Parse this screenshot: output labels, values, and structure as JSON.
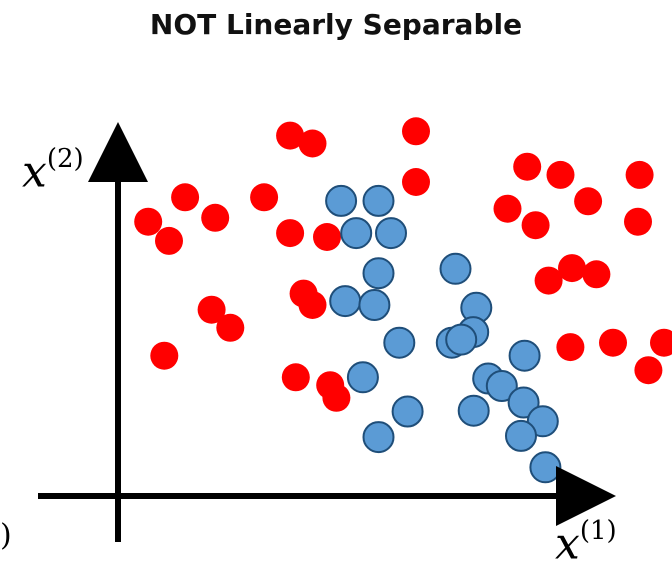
{
  "chart_data": {
    "type": "scatter",
    "title": "NOT Linearly Separable",
    "xlabel": {
      "var": "x",
      "sup": "(1)"
    },
    "ylabel": {
      "var": "x",
      "sup": "(2)"
    },
    "cut_label": ")",
    "xlim": [
      0,
      10
    ],
    "ylim": [
      0,
      10
    ],
    "grid": false,
    "colors": {
      "red": "#ff0000",
      "blue": "#5b9bd5",
      "blue_edge": "#1f4e79",
      "axis": "#000000"
    },
    "series": [
      {
        "color": "red",
        "points": [
          [
            3.31,
            9.17
          ],
          [
            3.74,
            8.97
          ],
          [
            5.73,
            9.28
          ],
          [
            7.87,
            8.38
          ],
          [
            8.51,
            8.17
          ],
          [
            10.03,
            8.17
          ],
          [
            5.73,
            7.99
          ],
          [
            1.29,
            7.6
          ],
          [
            2.81,
            7.6
          ],
          [
            9.04,
            7.5
          ],
          [
            0.58,
            6.98
          ],
          [
            1.87,
            7.08
          ],
          [
            7.49,
            7.31
          ],
          [
            10.0,
            6.98
          ],
          [
            3.31,
            6.69
          ],
          [
            0.98,
            6.49
          ],
          [
            4.02,
            6.59
          ],
          [
            8.03,
            6.89
          ],
          [
            9.2,
            5.64
          ],
          [
            8.73,
            5.8
          ],
          [
            8.28,
            5.48
          ],
          [
            3.57,
            5.15
          ],
          [
            3.74,
            4.86
          ],
          [
            1.8,
            4.74
          ],
          [
            2.16,
            4.28
          ],
          [
            9.52,
            3.9
          ],
          [
            10.5,
            3.9
          ],
          [
            0.89,
            3.57
          ],
          [
            3.42,
            3.02
          ],
          [
            4.08,
            2.82
          ],
          [
            8.7,
            3.79
          ],
          [
            10.2,
            3.2
          ],
          [
            4.2,
            2.5
          ]
        ]
      },
      {
        "color": "blue",
        "points": [
          [
            4.29,
            7.51
          ],
          [
            5.01,
            7.51
          ],
          [
            4.58,
            6.69
          ],
          [
            5.25,
            6.69
          ],
          [
            6.49,
            5.78
          ],
          [
            5.01,
            5.67
          ],
          [
            4.37,
            4.96
          ],
          [
            4.93,
            4.86
          ],
          [
            6.89,
            4.79
          ],
          [
            6.83,
            4.17
          ],
          [
            5.41,
            3.9
          ],
          [
            6.42,
            3.9
          ],
          [
            6.6,
            3.98
          ],
          [
            7.82,
            3.57
          ],
          [
            7.12,
            2.99
          ],
          [
            4.71,
            3.02
          ],
          [
            7.38,
            2.8
          ],
          [
            7.8,
            2.38
          ],
          [
            5.57,
            2.15
          ],
          [
            6.84,
            2.17
          ],
          [
            8.17,
            1.9
          ],
          [
            7.75,
            1.53
          ],
          [
            5.01,
            1.5
          ],
          [
            8.22,
            0.73
          ]
        ]
      }
    ]
  }
}
